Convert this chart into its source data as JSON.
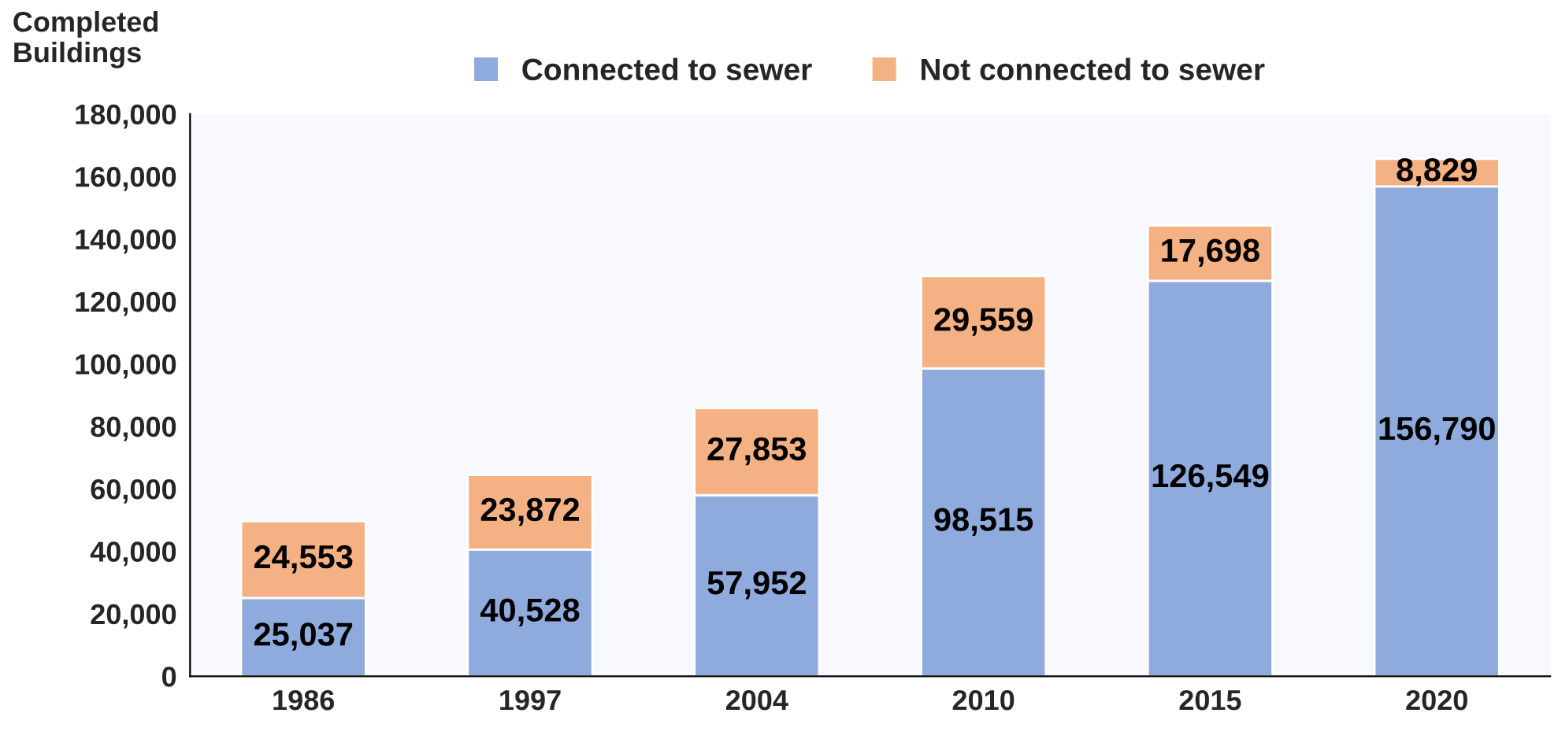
{
  "chart_data": {
    "type": "bar",
    "stacked": true,
    "ylabel": "Completed Buildings",
    "categories": [
      "1986",
      "1997",
      "2004",
      "2010",
      "2015",
      "2020"
    ],
    "series": [
      {
        "name": "Connected to sewer",
        "color": "#8faadc",
        "values": [
          25037,
          40528,
          57952,
          98515,
          126549,
          156790
        ],
        "value_labels": [
          "25,037",
          "40,528",
          "57,952",
          "98,515",
          "126,549",
          "156,790"
        ]
      },
      {
        "name": "Not connected to sewer",
        "color": "#f4b183",
        "values": [
          24553,
          23872,
          27853,
          29559,
          17698,
          8829
        ],
        "value_labels": [
          "24,553",
          "23,872",
          "27,853",
          "29,559",
          "17,698",
          "8,829"
        ]
      }
    ],
    "ylim": [
      0,
      180000
    ],
    "yticks": [
      {
        "value": 0,
        "label": "0"
      },
      {
        "value": 20000,
        "label": "20,000"
      },
      {
        "value": 40000,
        "label": "40,000"
      },
      {
        "value": 60000,
        "label": "60,000"
      },
      {
        "value": 80000,
        "label": "80,000"
      },
      {
        "value": 100000,
        "label": "100,000"
      },
      {
        "value": 120000,
        "label": "120,000"
      },
      {
        "value": 140000,
        "label": "140,000"
      },
      {
        "value": 160000,
        "label": "160,000"
      },
      {
        "value": 180000,
        "label": "180,000"
      }
    ],
    "legend": "top",
    "grid": false
  }
}
